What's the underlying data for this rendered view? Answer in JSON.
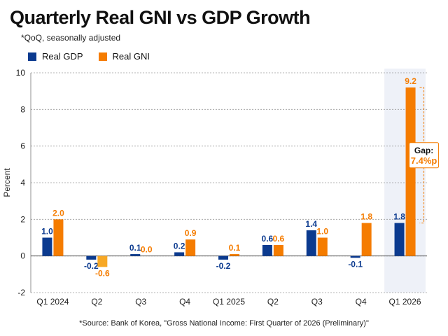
{
  "title": "Quarterly Real GNI vs GDP Growth",
  "subtitle": "*QoQ, seasonally adjusted",
  "source": "*Source: Bank of Korea, \"Gross National Income: First Quarter of 2026 (Preliminary)\"",
  "colors": {
    "gdp": "#0b3a8f",
    "gni": "#f57c00",
    "gni_negative": "#f7a825",
    "highlight": "#eef1f8",
    "gap": "#f57c00"
  },
  "chart_data": {
    "type": "bar",
    "categories": [
      "Q1 2024",
      "Q2",
      "Q3",
      "Q4",
      "Q1 2025",
      "Q2",
      "Q3",
      "Q4",
      "Q1 2026"
    ],
    "series": [
      {
        "name": "Real GDP",
        "values": [
          1.0,
          -0.2,
          0.1,
          0.2,
          -0.2,
          0.6,
          1.4,
          -0.1,
          1.8
        ]
      },
      {
        "name": "Real GNI",
        "values": [
          2.0,
          -0.6,
          0.0,
          0.9,
          0.1,
          0.6,
          1.0,
          1.8,
          9.2
        ]
      }
    ],
    "ylabel": "Percent",
    "ylim": [
      -2,
      10
    ],
    "yticks": [
      -2,
      0,
      2,
      4,
      6,
      8,
      10
    ],
    "grid": true,
    "legend": "top-left",
    "highlight_category": "Q1 2026",
    "annotation": {
      "label": "Gap:",
      "value": "7.4%p"
    }
  }
}
